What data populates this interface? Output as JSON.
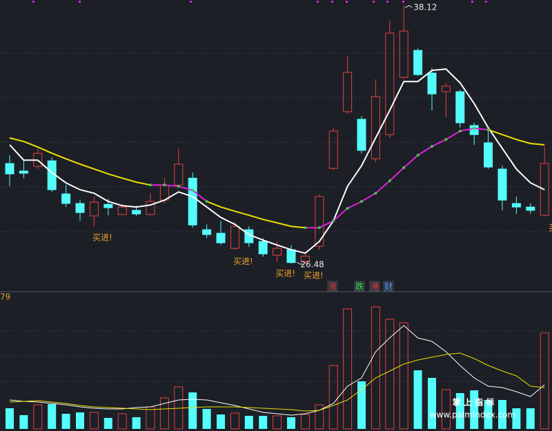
{
  "chart_data": {
    "type": "candlestick",
    "up_color": "#e8403f",
    "down_color": "#54fcfc",
    "candles": {
      "open": [
        31.01,
        30.67,
        30.88,
        31.13,
        29.64,
        29.21,
        28.65,
        29.17,
        28.71,
        28.9,
        28.71,
        29.36,
        30.04,
        30.35,
        28.03,
        27.87,
        27.19,
        28.03,
        27.5,
        26.88,
        27.13,
        26.6,
        27.28,
        30.79,
        33.34,
        33.0,
        31.22,
        32.31,
        34.89,
        36.1,
        35.08,
        34.24,
        34.24,
        32.72,
        31.94,
        30.76,
        29.21,
        29.05,
        28.68
      ],
      "close": [
        30.54,
        30.57,
        31.47,
        29.83,
        29.21,
        28.8,
        29.27,
        29.02,
        29.05,
        28.74,
        29.3,
        30.04,
        30.98,
        28.24,
        27.81,
        27.44,
        28.18,
        27.44,
        26.94,
        27.19,
        26.55,
        26.84,
        29.52,
        32.47,
        35.11,
        31.6,
        34.02,
        36.88,
        36.97,
        35.01,
        34.14,
        34.49,
        32.84,
        32.31,
        30.85,
        29.36,
        29.05,
        28.9,
        31.01
      ],
      "high": [
        31.38,
        31.16,
        31.69,
        31.29,
        30.04,
        29.36,
        29.52,
        29.42,
        29.21,
        29.11,
        29.67,
        30.35,
        31.69,
        30.6,
        28.27,
        28.43,
        28.37,
        28.18,
        27.65,
        27.5,
        27.34,
        27.03,
        29.61,
        32.62,
        35.82,
        33.15,
        34.8,
        37.44,
        38.12,
        36.19,
        35.32,
        34.64,
        34.33,
        32.84,
        32.62,
        30.91,
        29.52,
        29.21,
        31.78
      ],
      "low": [
        29.98,
        30.35,
        30.76,
        29.73,
        29.05,
        28.43,
        28.18,
        28.68,
        28.68,
        28.65,
        28.68,
        29.21,
        29.92,
        28.12,
        27.65,
        27.34,
        27.12,
        27.25,
        26.81,
        26.57,
        26.5,
        26.48,
        27.12,
        30.7,
        33.24,
        31.47,
        31.07,
        32.16,
        34.8,
        34.95,
        33.4,
        33.09,
        32.62,
        31.85,
        30.76,
        28.9,
        28.74,
        28.74,
        28.62
      ]
    },
    "moving_averages": [
      {
        "color": "#ffffff",
        "values": [
          31.85,
          31.16,
          31.16,
          30.6,
          30.14,
          29.83,
          29.67,
          29.3,
          29.11,
          29.05,
          29.14,
          29.36,
          29.73,
          29.52,
          29.05,
          28.58,
          28.27,
          27.81,
          27.56,
          27.34,
          27.13,
          26.97,
          27.5,
          28.43,
          29.98,
          30.91,
          32.16,
          33.4,
          34.7,
          34.7,
          35.2,
          35.26,
          34.64,
          33.71,
          32.62,
          31.69,
          30.76,
          30.14,
          29.83
        ]
      },
      {
        "color": "#f0e000",
        "values": [
          32.16,
          32.0,
          31.75,
          31.47,
          31.22,
          30.98,
          30.76,
          30.54,
          30.35,
          30.17,
          30.04,
          null,
          null,
          null,
          29.3,
          29.05,
          28.86,
          28.68,
          28.49,
          28.34,
          28.18,
          28.12,
          null,
          null,
          null,
          null,
          null,
          null,
          null,
          null,
          null,
          null,
          null,
          null,
          32.53,
          32.31,
          32.09,
          31.91,
          31.85
        ]
      },
      {
        "color": "#e020e0",
        "marker_color": "#40d040",
        "values": [
          null,
          null,
          null,
          null,
          null,
          null,
          null,
          null,
          null,
          null,
          30.04,
          30.04,
          29.98,
          29.8,
          29.3,
          null,
          null,
          null,
          null,
          null,
          null,
          28.12,
          28.12,
          28.43,
          28.99,
          29.3,
          29.67,
          30.23,
          30.82,
          31.38,
          31.78,
          32.09,
          32.47,
          32.59,
          32.53,
          null,
          null,
          null,
          null
        ]
      }
    ],
    "signals": [
      null,
      null,
      null,
      null,
      null,
      null,
      "买进!",
      null,
      null,
      null,
      null,
      null,
      null,
      null,
      null,
      null,
      "买进!",
      null,
      null,
      "买进!",
      null,
      "买进!",
      null,
      null,
      null,
      null,
      null,
      null,
      null,
      null,
      null,
      null,
      null,
      null,
      null,
      null,
      null,
      null,
      "买"
    ],
    "signal_color": "#f0a030",
    "tags": [
      {
        "text": "涨",
        "color": "#e8403f"
      },
      {
        "text": "跌",
        "color": "#40e040"
      },
      {
        "text": "港",
        "color": "#e8403f"
      },
      {
        "text": "财",
        "color": "#5a9cff"
      }
    ],
    "volume": {
      "corner_label": "79",
      "values": [
        30,
        20,
        35,
        36,
        22,
        24,
        24,
        16,
        22,
        17,
        32,
        45,
        61,
        53,
        29,
        21,
        23,
        19,
        19,
        19,
        17,
        21,
        35,
        92,
        174,
        69,
        177,
        159,
        154,
        85,
        74,
        57,
        52,
        56,
        42,
        42,
        30,
        30,
        139
      ],
      "moving_averages": [
        {
          "color": "#ffffff",
          "values": [
            42,
            40,
            39,
            37,
            35,
            32,
            30,
            29,
            29,
            31,
            32,
            37,
            42,
            43,
            42,
            38,
            34,
            29,
            24,
            22,
            20,
            22,
            27,
            37,
            62,
            74,
            112,
            132,
            150,
            132,
            127,
            112,
            92,
            74,
            62,
            60,
            54,
            47,
            64
          ]
        },
        {
          "color": "#f0e000",
          "values": [
            39,
            40,
            41,
            39,
            37,
            34,
            32,
            31,
            30,
            29,
            28,
            29,
            30,
            31,
            32,
            32,
            32,
            31,
            30,
            29,
            28,
            26,
            27,
            34,
            42,
            57,
            74,
            84,
            94,
            100,
            104,
            108,
            110,
            102,
            92,
            84,
            77,
            62,
            60
          ]
        }
      ]
    },
    "watermark": {
      "title": "掌 上 指 标",
      "url": "www.palmindex.com"
    }
  }
}
